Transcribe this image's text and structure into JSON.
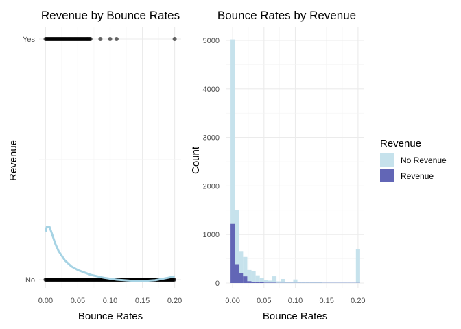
{
  "chart_data": [
    {
      "type": "scatter",
      "title": "Revenue by Bounce Rates",
      "xlabel": "Bounce Rates",
      "ylabel": "Revenue",
      "categories": [
        "No",
        "Yes"
      ],
      "xlim": [
        -0.01,
        0.21
      ],
      "xticks": [
        0.0,
        0.05,
        0.1,
        0.15,
        0.2
      ],
      "xtick_labels": [
        "0.00",
        "0.05",
        "0.10",
        "0.15",
        "0.20"
      ],
      "points_yes_solid_range": [
        0.0,
        0.07
      ],
      "points_yes_extra": [
        0.085,
        0.1,
        0.11,
        0.2
      ],
      "points_no_solid_range": [
        0.0,
        0.2
      ],
      "smooth_line": {
        "color": "#a6d3e4",
        "x": [
          0.0,
          0.002,
          0.006,
          0.01,
          0.015,
          0.02,
          0.03,
          0.04,
          0.05,
          0.07,
          0.09,
          0.11,
          0.13,
          0.15,
          0.17,
          0.19,
          0.2
        ],
        "y": [
          0.2,
          0.22,
          0.22,
          0.19,
          0.15,
          0.12,
          0.08,
          0.055,
          0.04,
          0.02,
          0.008,
          0.0,
          -0.004,
          -0.006,
          -0.002,
          0.008,
          0.014
        ]
      },
      "grid": true
    },
    {
      "type": "bar",
      "stacked": true,
      "title": "Bounce Rates by Revenue",
      "xlabel": "Bounce Rates",
      "ylabel": "Count",
      "xlim": [
        -0.01,
        0.21
      ],
      "ylim": [
        0,
        5000
      ],
      "xticks": [
        0.0,
        0.05,
        0.1,
        0.15,
        0.2
      ],
      "xtick_labels": [
        "0.00",
        "0.05",
        "0.10",
        "0.15",
        "0.20"
      ],
      "yticks": [
        0,
        1000,
        2000,
        3000,
        4000,
        5000
      ],
      "ytick_labels": [
        "0",
        "1000",
        "2000",
        "3000",
        "4000",
        "5000"
      ],
      "bin_width": 0.00667,
      "bin_centers": [
        0.0,
        0.00667,
        0.01333,
        0.02,
        0.02667,
        0.03333,
        0.04,
        0.04667,
        0.05333,
        0.06,
        0.06667,
        0.07333,
        0.08,
        0.08667,
        0.09333,
        0.1,
        0.10667,
        0.11333,
        0.12,
        0.12667,
        0.13333,
        0.14,
        0.14667,
        0.15333,
        0.16,
        0.16667,
        0.17333,
        0.18,
        0.18667,
        0.19333,
        0.2
      ],
      "series": [
        {
          "name": "No Revenue",
          "color": "#c6e2ec",
          "values": [
            3800,
            1120,
            460,
            400,
            230,
            210,
            130,
            90,
            50,
            40,
            130,
            30,
            80,
            20,
            20,
            70,
            10,
            20,
            20,
            10,
            10,
            10,
            5,
            5,
            5,
            5,
            5,
            5,
            5,
            5,
            700
          ]
        },
        {
          "name": "Revenue",
          "color": "#6266b6",
          "values": [
            1220,
            390,
            200,
            140,
            40,
            30,
            30,
            15,
            10,
            10,
            10,
            5,
            5,
            5,
            5,
            5,
            5,
            5,
            5,
            5,
            5,
            5,
            5,
            5,
            5,
            5,
            5,
            5,
            5,
            5,
            5
          ]
        }
      ],
      "legend": {
        "title": "Revenue",
        "position": "right",
        "entries": [
          "No Revenue",
          "Revenue"
        ]
      },
      "grid": true
    }
  ]
}
